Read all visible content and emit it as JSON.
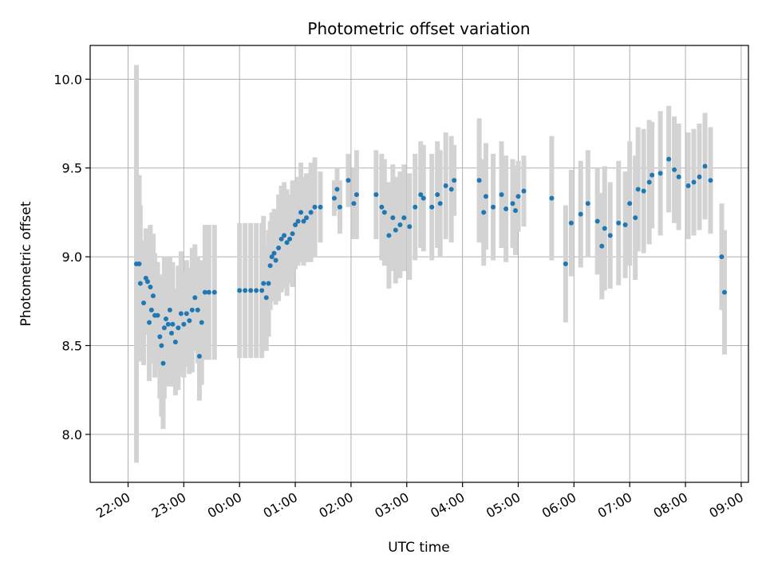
{
  "chart_data": {
    "type": "scatter",
    "title": "Photometric offset variation",
    "xlabel": "UTC time",
    "ylabel": "Photometric offset",
    "x_tick_labels": [
      "22:00",
      "23:00",
      "00:00",
      "01:00",
      "02:00",
      "03:00",
      "04:00",
      "05:00",
      "06:00",
      "07:00",
      "08:00",
      "09:00"
    ],
    "y_ticks": [
      8.0,
      8.5,
      9.0,
      9.5,
      10.0
    ],
    "y_tick_labels": [
      "8.0",
      "8.5",
      "9.0",
      "9.5",
      "10.0"
    ],
    "x_range_hours": [
      -2.68,
      9.13
    ],
    "ylim": [
      7.73,
      10.19
    ],
    "grid": true,
    "point_color": "#1f77b4",
    "errorbar_color": "#d3d3d3",
    "points": [
      [
        -1.85,
        8.96,
        1.12
      ],
      [
        -1.8,
        8.96,
        0.5
      ],
      [
        -1.78,
        8.85,
        0.44
      ],
      [
        -1.72,
        8.74,
        0.35
      ],
      [
        -1.68,
        8.88,
        0.28
      ],
      [
        -1.65,
        8.86,
        0.3
      ],
      [
        -1.62,
        8.63,
        0.33
      ],
      [
        -1.6,
        8.83,
        0.35
      ],
      [
        -1.58,
        8.7,
        0.3
      ],
      [
        -1.55,
        8.78,
        0.35
      ],
      [
        -1.52,
        8.67,
        0.35
      ],
      [
        -1.47,
        8.67,
        0.3
      ],
      [
        -1.43,
        8.55,
        0.35
      ],
      [
        -1.4,
        8.5,
        0.4
      ],
      [
        -1.37,
        8.4,
        0.37
      ],
      [
        -1.35,
        8.6,
        0.4
      ],
      [
        -1.32,
        8.65,
        0.35
      ],
      [
        -1.28,
        8.62,
        0.35
      ],
      [
        -1.25,
        8.7,
        0.3
      ],
      [
        -1.22,
        8.57,
        0.3
      ],
      [
        -1.2,
        8.62,
        0.35
      ],
      [
        -1.15,
        8.52,
        0.3
      ],
      [
        -1.1,
        8.6,
        0.35
      ],
      [
        -1.05,
        8.68,
        0.35
      ],
      [
        -1.0,
        8.62,
        0.3
      ],
      [
        -0.95,
        8.68,
        0.3
      ],
      [
        -0.9,
        8.64,
        0.3
      ],
      [
        -0.85,
        8.7,
        0.35
      ],
      [
        -0.8,
        8.77,
        0.3
      ],
      [
        -0.75,
        8.7,
        0.3
      ],
      [
        -0.72,
        8.44,
        0.25
      ],
      [
        -0.68,
        8.63,
        0.35
      ],
      [
        -0.62,
        8.8,
        0.38
      ],
      [
        -0.55,
        8.8,
        0.38
      ],
      [
        -0.45,
        8.8,
        0.38
      ],
      [
        0.0,
        8.81,
        0.38
      ],
      [
        0.1,
        8.81,
        0.38
      ],
      [
        0.2,
        8.81,
        0.38
      ],
      [
        0.3,
        8.81,
        0.38
      ],
      [
        0.4,
        8.81,
        0.38
      ],
      [
        0.43,
        8.85,
        0.38
      ],
      [
        0.48,
        8.77,
        0.3
      ],
      [
        0.52,
        8.85,
        0.3
      ],
      [
        0.55,
        8.95,
        0.25
      ],
      [
        0.58,
        9.0,
        0.25
      ],
      [
        0.62,
        9.02,
        0.25
      ],
      [
        0.65,
        8.98,
        0.25
      ],
      [
        0.7,
        9.05,
        0.3
      ],
      [
        0.75,
        9.1,
        0.3
      ],
      [
        0.8,
        9.12,
        0.3
      ],
      [
        0.85,
        9.08,
        0.3
      ],
      [
        0.9,
        9.1,
        0.25
      ],
      [
        0.95,
        9.13,
        0.3
      ],
      [
        1.0,
        9.18,
        0.25
      ],
      [
        1.05,
        9.2,
        0.25
      ],
      [
        1.1,
        9.25,
        0.28
      ],
      [
        1.15,
        9.2,
        0.25
      ],
      [
        1.2,
        9.22,
        0.25
      ],
      [
        1.28,
        9.25,
        0.28
      ],
      [
        1.35,
        9.28,
        0.28
      ],
      [
        1.45,
        9.28,
        0.2
      ],
      [
        1.7,
        9.33,
        0.1
      ],
      [
        1.75,
        9.38,
        0.12
      ],
      [
        1.8,
        9.28,
        0.15
      ],
      [
        1.95,
        9.43,
        0.15
      ],
      [
        2.05,
        9.3,
        0.2
      ],
      [
        2.1,
        9.35,
        0.25
      ],
      [
        2.45,
        9.35,
        0.25
      ],
      [
        2.55,
        9.28,
        0.3
      ],
      [
        2.6,
        9.25,
        0.3
      ],
      [
        2.68,
        9.12,
        0.3
      ],
      [
        2.75,
        9.22,
        0.3
      ],
      [
        2.8,
        9.15,
        0.3
      ],
      [
        2.88,
        9.18,
        0.3
      ],
      [
        2.95,
        9.22,
        0.3
      ],
      [
        3.05,
        9.17,
        0.3
      ],
      [
        3.15,
        9.28,
        0.3
      ],
      [
        3.25,
        9.35,
        0.3
      ],
      [
        3.3,
        9.33,
        0.3
      ],
      [
        3.45,
        9.28,
        0.3
      ],
      [
        3.55,
        9.35,
        0.3
      ],
      [
        3.6,
        9.3,
        0.3
      ],
      [
        3.7,
        9.4,
        0.3
      ],
      [
        3.8,
        9.38,
        0.3
      ],
      [
        3.85,
        9.43,
        0.2
      ],
      [
        4.3,
        9.43,
        0.35
      ],
      [
        4.38,
        9.25,
        0.3
      ],
      [
        4.42,
        9.34,
        0.3
      ],
      [
        4.55,
        9.28,
        0.3
      ],
      [
        4.7,
        9.35,
        0.3
      ],
      [
        4.78,
        9.27,
        0.3
      ],
      [
        4.9,
        9.3,
        0.25
      ],
      [
        4.95,
        9.26,
        0.25
      ],
      [
        5.0,
        9.34,
        0.2
      ],
      [
        5.1,
        9.37,
        0.2
      ],
      [
        5.6,
        9.33,
        0.35
      ],
      [
        5.85,
        8.96,
        0.33
      ],
      [
        5.95,
        9.19,
        0.3
      ],
      [
        6.12,
        9.24,
        0.3
      ],
      [
        6.25,
        9.3,
        0.3
      ],
      [
        6.42,
        9.2,
        0.3
      ],
      [
        6.5,
        9.06,
        0.3
      ],
      [
        6.55,
        9.16,
        0.35
      ],
      [
        6.65,
        9.12,
        0.3
      ],
      [
        6.8,
        9.19,
        0.35
      ],
      [
        6.92,
        9.18,
        0.3
      ],
      [
        7.0,
        9.3,
        0.35
      ],
      [
        7.1,
        9.22,
        0.35
      ],
      [
        7.15,
        9.38,
        0.35
      ],
      [
        7.25,
        9.37,
        0.35
      ],
      [
        7.35,
        9.42,
        0.35
      ],
      [
        7.4,
        9.46,
        0.3
      ],
      [
        7.55,
        9.47,
        0.35
      ],
      [
        7.7,
        9.55,
        0.3
      ],
      [
        7.8,
        9.49,
        0.3
      ],
      [
        7.88,
        9.45,
        0.3
      ],
      [
        8.05,
        9.4,
        0.3
      ],
      [
        8.15,
        9.42,
        0.3
      ],
      [
        8.25,
        9.45,
        0.3
      ],
      [
        8.35,
        9.51,
        0.3
      ],
      [
        8.45,
        9.43,
        0.3
      ],
      [
        8.65,
        9.0,
        0.3
      ],
      [
        8.7,
        8.8,
        0.35
      ]
    ]
  }
}
